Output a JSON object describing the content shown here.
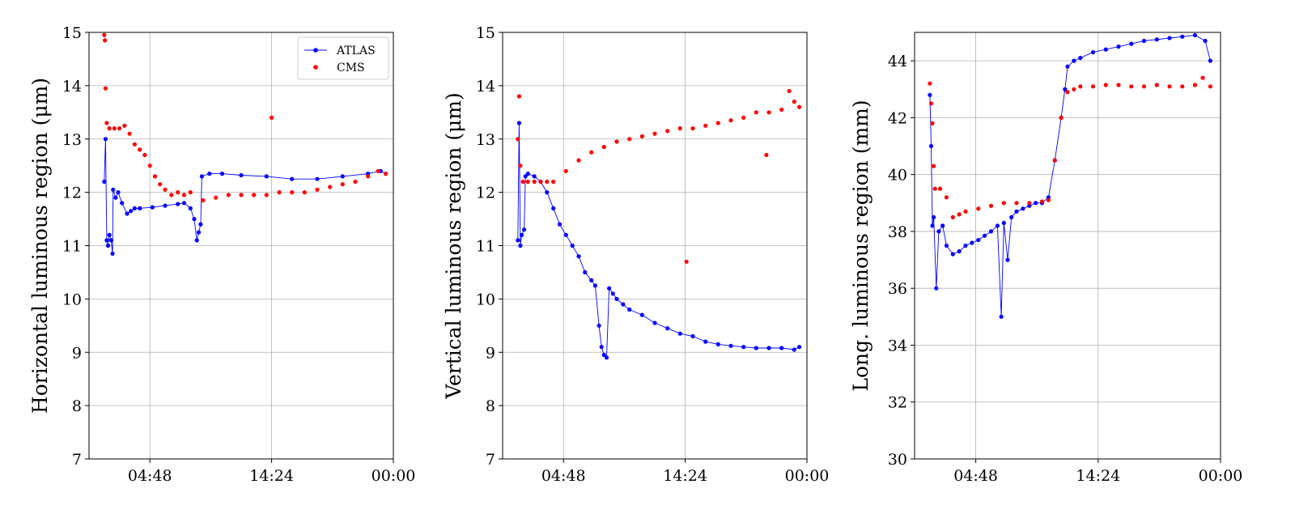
{
  "chart_data": [
    {
      "type": "line",
      "title": "",
      "xlabel": "",
      "ylabel": "Horizontal luminous region (μm)",
      "xlim": [
        0.0,
        24.0
      ],
      "ylim": [
        7,
        15
      ],
      "xticks": [
        {
          "v": 4.8,
          "label": "04:48"
        },
        {
          "v": 14.4,
          "label": "14:24"
        },
        {
          "v": 24.0,
          "label": "00:00"
        }
      ],
      "yticks": [
        7,
        8,
        9,
        10,
        11,
        12,
        13,
        14,
        15
      ],
      "grid": true,
      "legend": {
        "position": "top-right",
        "entries": [
          {
            "name": "ATLAS",
            "color": "#0000ff",
            "style": "line-marker"
          },
          {
            "name": "CMS",
            "color": "#ff0000",
            "style": "marker"
          }
        ]
      },
      "series": [
        {
          "name": "ATLAS",
          "color": "#0000ff",
          "style": "line-marker",
          "points": [
            [
              1.2,
              12.2
            ],
            [
              1.3,
              13.0
            ],
            [
              1.4,
              11.1
            ],
            [
              1.5,
              11.0
            ],
            [
              1.6,
              11.2
            ],
            [
              1.75,
              11.1
            ],
            [
              1.85,
              10.85
            ],
            [
              1.9,
              12.05
            ],
            [
              2.1,
              11.9
            ],
            [
              2.3,
              12.0
            ],
            [
              2.6,
              11.8
            ],
            [
              3.0,
              11.6
            ],
            [
              3.3,
              11.65
            ],
            [
              3.6,
              11.7
            ],
            [
              4.0,
              11.7
            ],
            [
              5.0,
              11.72
            ],
            [
              6.0,
              11.75
            ],
            [
              7.0,
              11.78
            ],
            [
              7.5,
              11.8
            ],
            [
              8.0,
              11.7
            ],
            [
              8.3,
              11.5
            ],
            [
              8.5,
              11.1
            ],
            [
              8.65,
              11.25
            ],
            [
              8.8,
              11.4
            ],
            [
              8.9,
              12.3
            ],
            [
              9.5,
              12.35
            ],
            [
              10.5,
              12.35
            ],
            [
              12.0,
              12.32
            ],
            [
              14.0,
              12.3
            ],
            [
              16.0,
              12.25
            ],
            [
              18.0,
              12.25
            ],
            [
              20.0,
              12.3
            ],
            [
              22.0,
              12.35
            ],
            [
              23.0,
              12.4
            ],
            [
              23.4,
              12.35
            ]
          ]
        },
        {
          "name": "CMS",
          "color": "#ff0000",
          "style": "marker",
          "points": [
            [
              1.2,
              14.95
            ],
            [
              1.25,
              14.85
            ],
            [
              1.3,
              13.95
            ],
            [
              1.4,
              13.3
            ],
            [
              1.6,
              13.2
            ],
            [
              2.0,
              13.2
            ],
            [
              2.4,
              13.2
            ],
            [
              2.8,
              13.25
            ],
            [
              3.2,
              13.1
            ],
            [
              3.6,
              12.9
            ],
            [
              4.0,
              12.8
            ],
            [
              4.4,
              12.7
            ],
            [
              4.8,
              12.5
            ],
            [
              5.2,
              12.3
            ],
            [
              5.6,
              12.15
            ],
            [
              6.0,
              12.05
            ],
            [
              6.5,
              11.95
            ],
            [
              7.0,
              12.0
            ],
            [
              7.5,
              11.95
            ],
            [
              8.0,
              12.0
            ],
            [
              9.0,
              11.85
            ],
            [
              10.0,
              11.9
            ],
            [
              11.0,
              11.95
            ],
            [
              12.0,
              11.95
            ],
            [
              13.0,
              11.95
            ],
            [
              14.0,
              11.95
            ],
            [
              14.4,
              13.4
            ],
            [
              15.0,
              12.0
            ],
            [
              16.0,
              12.0
            ],
            [
              17.0,
              12.0
            ],
            [
              18.0,
              12.05
            ],
            [
              19.0,
              12.1
            ],
            [
              20.0,
              12.15
            ],
            [
              21.0,
              12.2
            ],
            [
              22.0,
              12.3
            ],
            [
              22.8,
              12.4
            ],
            [
              23.4,
              12.35
            ]
          ]
        }
      ]
    },
    {
      "type": "line",
      "title": "",
      "xlabel": "",
      "ylabel": "Vertical luminous region (μm)",
      "xlim": [
        0.0,
        24.0
      ],
      "ylim": [
        7,
        15
      ],
      "xticks": [
        {
          "v": 4.8,
          "label": "04:48"
        },
        {
          "v": 14.4,
          "label": "14:24"
        },
        {
          "v": 24.0,
          "label": "00:00"
        }
      ],
      "yticks": [
        7,
        8,
        9,
        10,
        11,
        12,
        13,
        14,
        15
      ],
      "grid": true,
      "series": [
        {
          "name": "ATLAS",
          "color": "#0000ff",
          "style": "line-marker",
          "points": [
            [
              1.2,
              11.1
            ],
            [
              1.3,
              13.3
            ],
            [
              1.4,
              11.0
            ],
            [
              1.5,
              11.2
            ],
            [
              1.7,
              11.3
            ],
            [
              1.8,
              12.3
            ],
            [
              2.0,
              12.35
            ],
            [
              2.5,
              12.3
            ],
            [
              3.0,
              12.2
            ],
            [
              3.5,
              12.0
            ],
            [
              4.0,
              11.7
            ],
            [
              4.5,
              11.4
            ],
            [
              5.0,
              11.2
            ],
            [
              5.5,
              11.0
            ],
            [
              6.0,
              10.8
            ],
            [
              6.5,
              10.5
            ],
            [
              7.0,
              10.35
            ],
            [
              7.3,
              10.25
            ],
            [
              7.6,
              9.5
            ],
            [
              7.8,
              9.1
            ],
            [
              8.0,
              8.95
            ],
            [
              8.2,
              8.9
            ],
            [
              8.4,
              10.2
            ],
            [
              8.7,
              10.1
            ],
            [
              9.0,
              10.0
            ],
            [
              9.5,
              9.9
            ],
            [
              10.0,
              9.8
            ],
            [
              11.0,
              9.7
            ],
            [
              12.0,
              9.55
            ],
            [
              13.0,
              9.45
            ],
            [
              14.0,
              9.35
            ],
            [
              15.0,
              9.3
            ],
            [
              16.0,
              9.2
            ],
            [
              17.0,
              9.15
            ],
            [
              18.0,
              9.12
            ],
            [
              19.0,
              9.1
            ],
            [
              20.0,
              9.08
            ],
            [
              21.0,
              9.08
            ],
            [
              22.0,
              9.08
            ],
            [
              23.0,
              9.05
            ],
            [
              23.4,
              9.1
            ]
          ]
        },
        {
          "name": "CMS",
          "color": "#ff0000",
          "style": "marker",
          "points": [
            [
              1.2,
              13.0
            ],
            [
              1.3,
              13.8
            ],
            [
              1.4,
              12.5
            ],
            [
              1.6,
              12.2
            ],
            [
              2.0,
              12.2
            ],
            [
              2.5,
              12.2
            ],
            [
              3.0,
              12.2
            ],
            [
              3.5,
              12.2
            ],
            [
              4.0,
              12.2
            ],
            [
              5.0,
              12.4
            ],
            [
              6.0,
              12.6
            ],
            [
              7.0,
              12.75
            ],
            [
              8.0,
              12.85
            ],
            [
              9.0,
              12.95
            ],
            [
              10.0,
              13.0
            ],
            [
              11.0,
              13.05
            ],
            [
              12.0,
              13.1
            ],
            [
              13.0,
              13.15
            ],
            [
              14.0,
              13.2
            ],
            [
              14.5,
              10.7
            ],
            [
              15.0,
              13.2
            ],
            [
              16.0,
              13.25
            ],
            [
              17.0,
              13.3
            ],
            [
              18.0,
              13.35
            ],
            [
              19.0,
              13.4
            ],
            [
              20.0,
              13.5
            ],
            [
              20.8,
              12.7
            ],
            [
              21.0,
              13.5
            ],
            [
              22.0,
              13.55
            ],
            [
              22.6,
              13.9
            ],
            [
              23.0,
              13.7
            ],
            [
              23.4,
              13.6
            ]
          ]
        }
      ]
    },
    {
      "type": "line",
      "title": "",
      "xlabel": "",
      "ylabel": "Long. luminous region (mm)",
      "xlim": [
        0.0,
        24.0
      ],
      "ylim": [
        30,
        45
      ],
      "xticks": [
        {
          "v": 4.8,
          "label": "04:48"
        },
        {
          "v": 14.4,
          "label": "14:24"
        },
        {
          "v": 24.0,
          "label": "00:00"
        }
      ],
      "yticks": [
        30,
        32,
        34,
        36,
        38,
        40,
        42,
        44
      ],
      "grid": true,
      "series": [
        {
          "name": "ATLAS",
          "color": "#0000ff",
          "style": "line-marker",
          "points": [
            [
              1.2,
              42.8
            ],
            [
              1.3,
              41.0
            ],
            [
              1.4,
              38.2
            ],
            [
              1.5,
              38.5
            ],
            [
              1.7,
              36.0
            ],
            [
              1.9,
              38.0
            ],
            [
              2.2,
              38.2
            ],
            [
              2.5,
              37.5
            ],
            [
              3.0,
              37.2
            ],
            [
              3.5,
              37.3
            ],
            [
              4.0,
              37.5
            ],
            [
              4.5,
              37.6
            ],
            [
              5.0,
              37.7
            ],
            [
              5.5,
              37.85
            ],
            [
              6.0,
              38.0
            ],
            [
              6.5,
              38.2
            ],
            [
              6.8,
              35.0
            ],
            [
              7.0,
              38.3
            ],
            [
              7.3,
              37.0
            ],
            [
              7.6,
              38.5
            ],
            [
              8.0,
              38.7
            ],
            [
              8.5,
              38.8
            ],
            [
              9.0,
              38.9
            ],
            [
              9.5,
              39.0
            ],
            [
              10.0,
              39.0
            ],
            [
              10.5,
              39.2
            ],
            [
              11.0,
              40.5
            ],
            [
              11.5,
              42.0
            ],
            [
              11.8,
              43.0
            ],
            [
              12.0,
              43.8
            ],
            [
              12.5,
              44.0
            ],
            [
              13.0,
              44.1
            ],
            [
              14.0,
              44.3
            ],
            [
              15.0,
              44.4
            ],
            [
              16.0,
              44.5
            ],
            [
              17.0,
              44.6
            ],
            [
              18.0,
              44.7
            ],
            [
              19.0,
              44.75
            ],
            [
              20.0,
              44.8
            ],
            [
              21.0,
              44.85
            ],
            [
              22.0,
              44.9
            ],
            [
              22.8,
              44.7
            ],
            [
              23.2,
              44.0
            ]
          ]
        },
        {
          "name": "CMS",
          "color": "#ff0000",
          "style": "marker",
          "points": [
            [
              1.2,
              43.2
            ],
            [
              1.3,
              42.5
            ],
            [
              1.4,
              41.8
            ],
            [
              1.5,
              40.3
            ],
            [
              1.6,
              39.5
            ],
            [
              2.0,
              39.5
            ],
            [
              2.5,
              39.2
            ],
            [
              3.0,
              38.5
            ],
            [
              3.5,
              38.6
            ],
            [
              4.0,
              38.7
            ],
            [
              5.0,
              38.8
            ],
            [
              6.0,
              38.9
            ],
            [
              7.0,
              39.0
            ],
            [
              8.0,
              39.0
            ],
            [
              9.0,
              39.0
            ],
            [
              10.0,
              39.05
            ],
            [
              10.5,
              39.1
            ],
            [
              11.0,
              40.5
            ],
            [
              11.5,
              42.0
            ],
            [
              12.0,
              42.9
            ],
            [
              12.5,
              43.0
            ],
            [
              13.0,
              43.1
            ],
            [
              14.0,
              43.1
            ],
            [
              15.0,
              43.15
            ],
            [
              16.0,
              43.15
            ],
            [
              17.0,
              43.1
            ],
            [
              18.0,
              43.1
            ],
            [
              19.0,
              43.15
            ],
            [
              20.0,
              43.1
            ],
            [
              21.0,
              43.1
            ],
            [
              22.0,
              43.15
            ],
            [
              22.6,
              43.4
            ],
            [
              23.2,
              43.1
            ]
          ]
        }
      ]
    }
  ]
}
